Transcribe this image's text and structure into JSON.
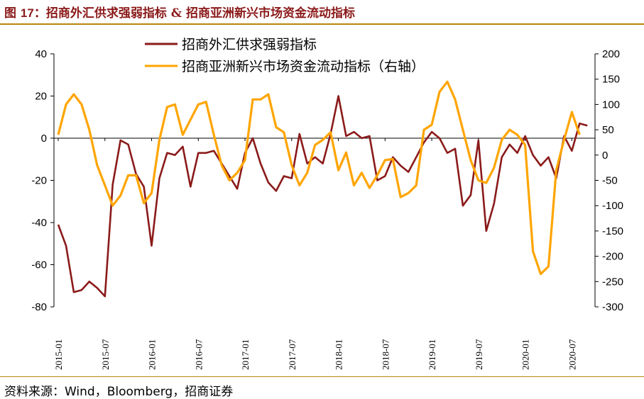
{
  "figure": {
    "title_prefix": "图 ",
    "title_number": "17",
    "title_text": "：招商外汇供求强弱指标 & 招商亚洲新兴市场资金流动指标",
    "source": "资料来源：Wind，Bloomberg，招商证券"
  },
  "colors": {
    "series1": "#8B1A1A",
    "series2": "#FFA500",
    "rule": "#B8860B",
    "axis": "#000000"
  },
  "chart_data": {
    "type": "line",
    "x_tick_labels": [
      "2015-01",
      "2015-07",
      "2016-01",
      "2016-07",
      "2017-01",
      "2017-07",
      "2018-01",
      "2018-07",
      "2019-01",
      "2019-07",
      "2020-01",
      "2020-07"
    ],
    "x_start": "2015-01",
    "ylim_left": [
      -80,
      40
    ],
    "yticks_left": [
      "40",
      "20",
      "0",
      "-20",
      "-40",
      "-60",
      "-80"
    ],
    "ylim_right": [
      -300,
      200
    ],
    "yticks_right": [
      "200",
      "150",
      "100",
      "50",
      "0",
      "-50",
      "-100",
      "-150",
      "-200",
      "-250",
      "-300"
    ],
    "legend_position": "top-center",
    "series": [
      {
        "name": "招商外汇供求强弱指标",
        "axis": "left",
        "values": [
          -41,
          -51,
          -73,
          -72,
          -68,
          -71,
          -75,
          -22,
          -1,
          -3,
          -17,
          -23,
          -51,
          -19,
          -7,
          -8,
          -4,
          -23,
          -7,
          -7,
          -6,
          -12,
          -18,
          -24,
          -7,
          0,
          -12,
          -21,
          -25,
          -18,
          -19,
          2,
          -12,
          -9,
          -12,
          2,
          20,
          1,
          3,
          0,
          1,
          -20,
          -18,
          -9,
          -13,
          -16,
          -9,
          -2,
          3,
          0,
          -7,
          -5,
          -32,
          -27,
          -1,
          -44,
          -31,
          -9,
          -3,
          -7,
          1,
          -8,
          -13,
          -9,
          -19,
          1,
          -6,
          7,
          6
        ],
        "color": "#8B1A1A"
      },
      {
        "name": "招商亚洲新兴市场资金流动指标（右轴）",
        "axis": "right",
        "values": [
          40,
          100,
          120,
          100,
          50,
          -20,
          -60,
          -100,
          -80,
          -40,
          -40,
          -95,
          -75,
          30,
          95,
          100,
          40,
          70,
          100,
          105,
          40,
          -20,
          -50,
          -35,
          -10,
          110,
          110,
          120,
          55,
          45,
          -20,
          -60,
          -35,
          20,
          30,
          45,
          -30,
          5,
          -60,
          -35,
          -65,
          -40,
          -10,
          -8,
          -83,
          -75,
          -60,
          50,
          60,
          125,
          145,
          110,
          50,
          -10,
          -50,
          -55,
          -25,
          30,
          50,
          40,
          20,
          -190,
          -235,
          -220,
          -30,
          30,
          85,
          40
        ]
      }
    ]
  }
}
